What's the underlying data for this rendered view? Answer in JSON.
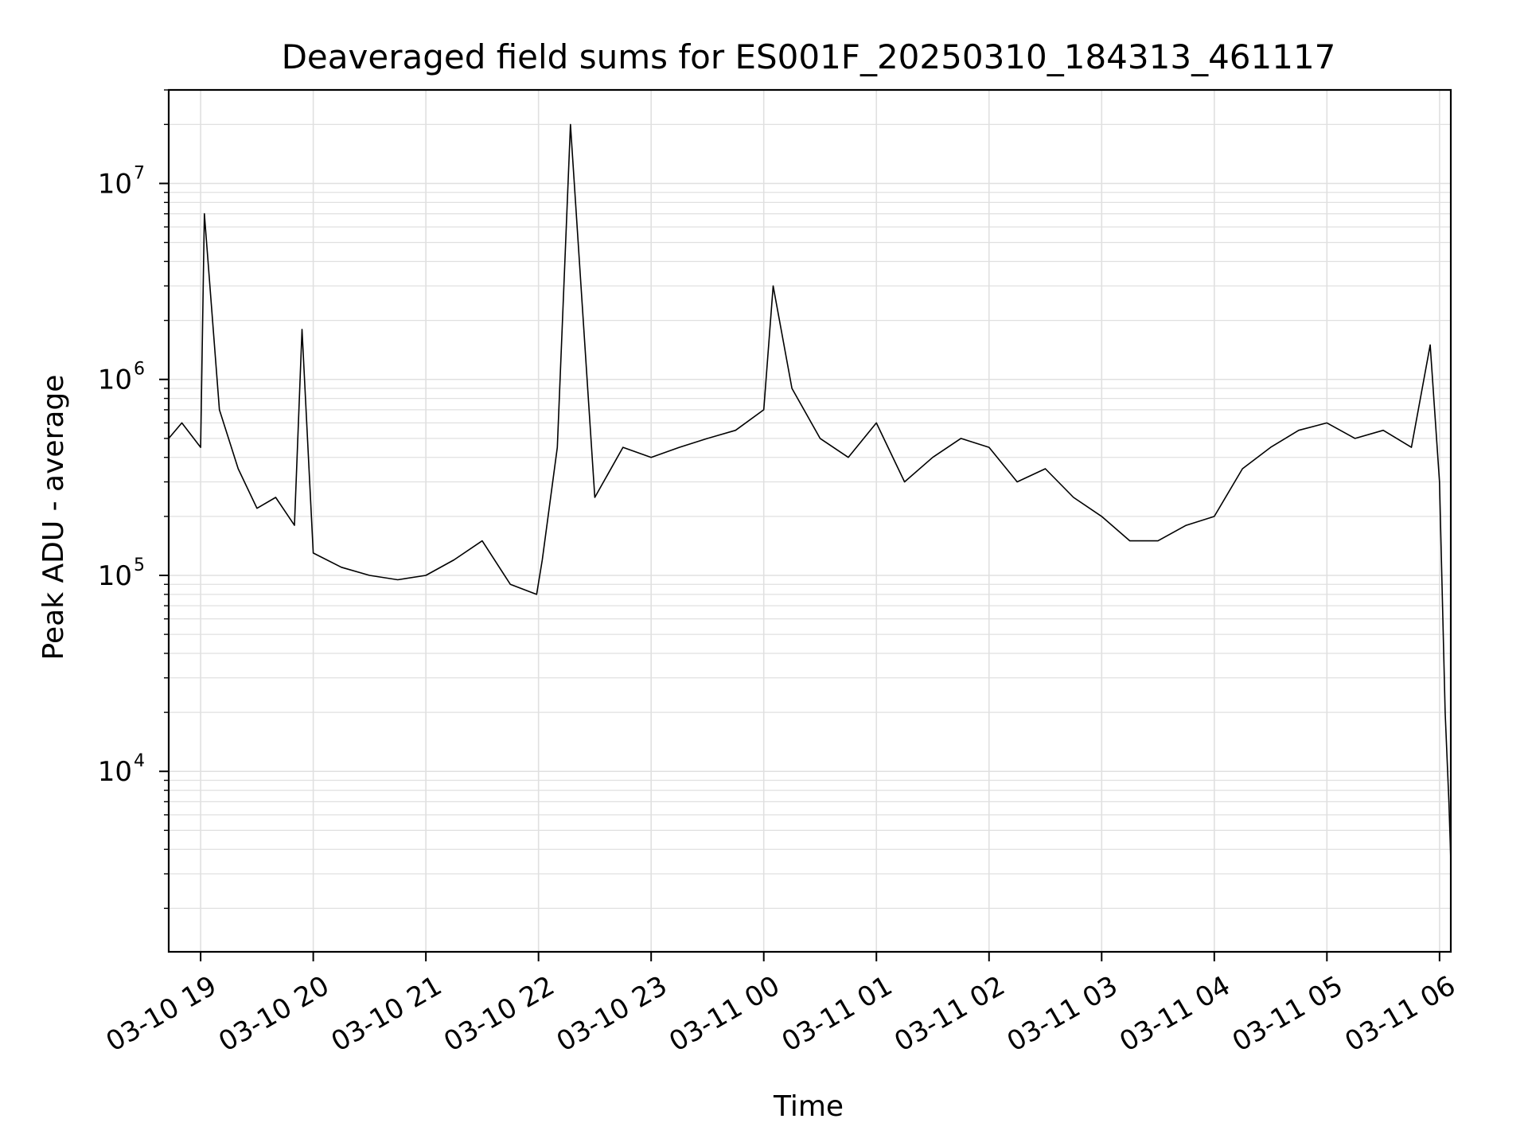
{
  "chart_data": {
    "type": "line",
    "title": "Deaveraged field sums for ES001F_20250310_184313_461117",
    "xlabel": "Time",
    "ylabel": "Peak ADU - average",
    "y_scale": "log",
    "ylim": [
      1200,
      30000000
    ],
    "xlim": [
      "2025-03-10 18:43",
      "2025-03-11 06:06"
    ],
    "x_ticks": [
      {
        "label": "03-10 19",
        "time": "2025-03-10 19:00"
      },
      {
        "label": "03-10 20",
        "time": "2025-03-10 20:00"
      },
      {
        "label": "03-10 21",
        "time": "2025-03-10 21:00"
      },
      {
        "label": "03-10 22",
        "time": "2025-03-10 22:00"
      },
      {
        "label": "03-10 23",
        "time": "2025-03-10 23:00"
      },
      {
        "label": "03-11 00",
        "time": "2025-03-11 00:00"
      },
      {
        "label": "03-11 01",
        "time": "2025-03-11 01:00"
      },
      {
        "label": "03-11 02",
        "time": "2025-03-11 02:00"
      },
      {
        "label": "03-11 03",
        "time": "2025-03-11 03:00"
      },
      {
        "label": "03-11 04",
        "time": "2025-03-11 04:00"
      },
      {
        "label": "03-11 05",
        "time": "2025-03-11 05:00"
      },
      {
        "label": "03-11 06",
        "time": "2025-03-11 06:00"
      }
    ],
    "y_ticks": [
      {
        "base": "10",
        "exp": "4",
        "value": 10000
      },
      {
        "base": "10",
        "exp": "5",
        "value": 100000
      },
      {
        "base": "10",
        "exp": "6",
        "value": 1000000
      },
      {
        "base": "10",
        "exp": "7",
        "value": 10000000
      }
    ],
    "grid": true,
    "line_color": "#000000",
    "series": [
      {
        "name": "",
        "x": [
          "2025-03-10 18:43",
          "2025-03-10 18:50",
          "2025-03-10 19:00",
          "2025-03-10 19:02",
          "2025-03-10 19:10",
          "2025-03-10 19:20",
          "2025-03-10 19:30",
          "2025-03-10 19:40",
          "2025-03-10 19:50",
          "2025-03-10 19:54",
          "2025-03-10 20:00",
          "2025-03-10 20:15",
          "2025-03-10 20:30",
          "2025-03-10 20:45",
          "2025-03-10 21:00",
          "2025-03-10 21:15",
          "2025-03-10 21:30",
          "2025-03-10 21:45",
          "2025-03-10 21:59",
          "2025-03-10 22:02",
          "2025-03-10 22:10",
          "2025-03-10 22:17",
          "2025-03-10 22:30",
          "2025-03-10 22:45",
          "2025-03-10 23:00",
          "2025-03-10 23:15",
          "2025-03-10 23:30",
          "2025-03-10 23:45",
          "2025-03-11 00:00",
          "2025-03-11 00:05",
          "2025-03-11 00:15",
          "2025-03-11 00:30",
          "2025-03-11 00:45",
          "2025-03-11 01:00",
          "2025-03-11 01:15",
          "2025-03-11 01:30",
          "2025-03-11 01:45",
          "2025-03-11 02:00",
          "2025-03-11 02:15",
          "2025-03-11 02:30",
          "2025-03-11 02:45",
          "2025-03-11 03:00",
          "2025-03-11 03:15",
          "2025-03-11 03:30",
          "2025-03-11 03:45",
          "2025-03-11 04:00",
          "2025-03-11 04:15",
          "2025-03-11 04:30",
          "2025-03-11 04:45",
          "2025-03-11 05:00",
          "2025-03-11 05:15",
          "2025-03-11 05:30",
          "2025-03-11 05:45",
          "2025-03-11 05:55",
          "2025-03-11 06:00",
          "2025-03-11 06:03",
          "2025-03-11 06:05",
          "2025-03-11 06:06"
        ],
        "y": [
          500000,
          600000,
          450000,
          7000000,
          700000,
          350000,
          220000,
          250000,
          180000,
          1800000,
          130000,
          110000,
          100000,
          95000,
          100000,
          120000,
          150000,
          90000,
          80000,
          120000,
          450000,
          20000000,
          250000,
          450000,
          400000,
          450000,
          500000,
          550000,
          700000,
          3000000,
          900000,
          500000,
          400000,
          600000,
          300000,
          400000,
          500000,
          450000,
          300000,
          350000,
          250000,
          200000,
          150000,
          150000,
          180000,
          200000,
          350000,
          450000,
          550000,
          600000,
          500000,
          550000,
          450000,
          1500000,
          300000,
          20000,
          7000,
          3500
        ]
      }
    ]
  }
}
